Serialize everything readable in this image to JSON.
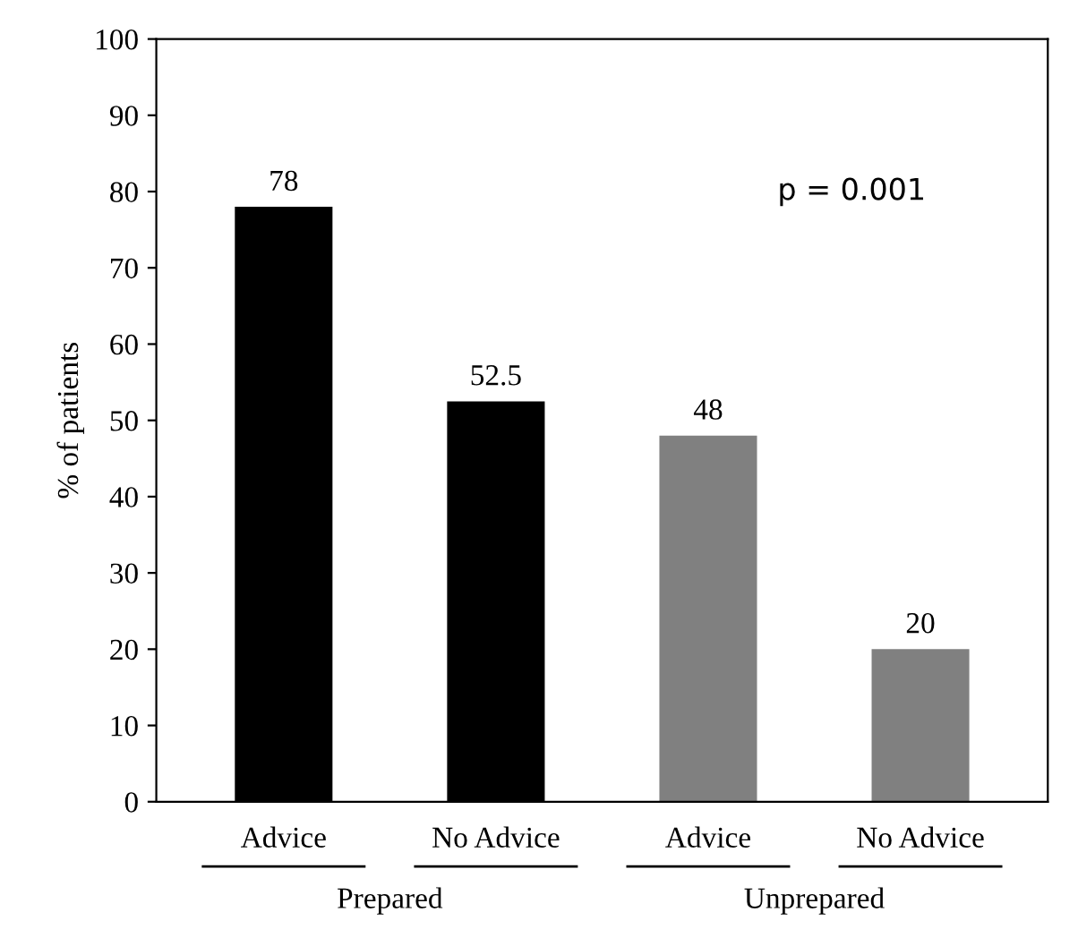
{
  "chart_data": {
    "type": "bar",
    "ylabel": "% of patients",
    "categories": [
      "Advice",
      "No Advice",
      "Advice",
      "No Advice"
    ],
    "values": [
      78,
      52.5,
      48,
      20
    ],
    "colors": [
      "#000000",
      "#000000",
      "#808080",
      "#808080"
    ],
    "ylim": [
      0,
      100
    ],
    "yticks": [
      0,
      10,
      20,
      30,
      40,
      50,
      60,
      70,
      80,
      90,
      100
    ],
    "data_labels": true,
    "grid": false,
    "legend": false,
    "annotations": [
      "p = 0.001",
      "Prepared",
      "Unprepared"
    ]
  }
}
